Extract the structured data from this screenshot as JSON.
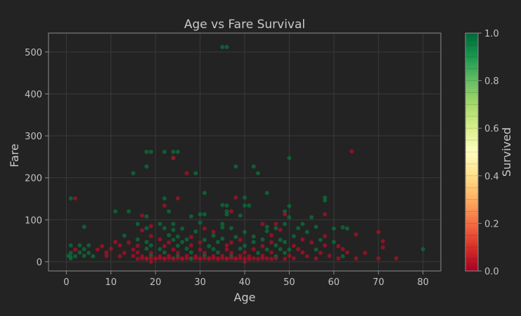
{
  "chart_data": {
    "type": "scatter",
    "title": "Age vs Fare Survival",
    "xlabel": "Age",
    "ylabel": "Fare",
    "xlim": [
      -4,
      84
    ],
    "ylim": [
      -22,
      545
    ],
    "xticks": [
      0,
      10,
      20,
      30,
      40,
      50,
      60,
      70,
      80
    ],
    "yticks": [
      0,
      100,
      200,
      300,
      400,
      500
    ],
    "grid": true,
    "colorbar": {
      "label": "Survived",
      "colormap": "RdYlGn",
      "range": [
        0.0,
        1.0
      ],
      "ticks": [
        "0.0",
        "0.2",
        "0.4",
        "0.6",
        "0.8",
        "1.0"
      ]
    },
    "colors": {
      "survived": "#0b6b3a",
      "not_survived": "#a50f26",
      "background": "#232323"
    },
    "note_points": "x = Age, y = Fare, s = Survived (0 or 1)",
    "points": [
      {
        "x": 35,
        "y": 512,
        "s": 1
      },
      {
        "x": 36,
        "y": 512,
        "s": 1
      },
      {
        "x": 18,
        "y": 262,
        "s": 1
      },
      {
        "x": 19,
        "y": 262,
        "s": 1
      },
      {
        "x": 22,
        "y": 262,
        "s": 1
      },
      {
        "x": 24,
        "y": 262,
        "s": 1
      },
      {
        "x": 25,
        "y": 262,
        "s": 1
      },
      {
        "x": 64,
        "y": 263,
        "s": 0
      },
      {
        "x": 24,
        "y": 247,
        "s": 1
      },
      {
        "x": 24,
        "y": 248,
        "s": 0
      },
      {
        "x": 50,
        "y": 247,
        "s": 1
      },
      {
        "x": 18,
        "y": 227,
        "s": 1
      },
      {
        "x": 38,
        "y": 227,
        "s": 1
      },
      {
        "x": 42,
        "y": 227,
        "s": 1
      },
      {
        "x": 15,
        "y": 211,
        "s": 1
      },
      {
        "x": 27,
        "y": 211,
        "s": 0
      },
      {
        "x": 29,
        "y": 211,
        "s": 1
      },
      {
        "x": 43,
        "y": 211,
        "s": 1
      },
      {
        "x": 31,
        "y": 164,
        "s": 1
      },
      {
        "x": 45,
        "y": 164,
        "s": 1
      },
      {
        "x": 38,
        "y": 153,
        "s": 0
      },
      {
        "x": 40,
        "y": 153,
        "s": 1
      },
      {
        "x": 58,
        "y": 153,
        "s": 1
      },
      {
        "x": 1,
        "y": 151,
        "s": 1
      },
      {
        "x": 2,
        "y": 151,
        "s": 0
      },
      {
        "x": 22,
        "y": 151,
        "s": 1
      },
      {
        "x": 25,
        "y": 151,
        "s": 0
      },
      {
        "x": 58,
        "y": 146,
        "s": 1
      },
      {
        "x": 22,
        "y": 134,
        "s": 0
      },
      {
        "x": 36,
        "y": 134,
        "s": 1
      },
      {
        "x": 40,
        "y": 134,
        "s": 1
      },
      {
        "x": 41,
        "y": 134,
        "s": 1
      },
      {
        "x": 50,
        "y": 133,
        "s": 1
      },
      {
        "x": 35,
        "y": 135,
        "s": 1
      },
      {
        "x": 11,
        "y": 120,
        "s": 1
      },
      {
        "x": 14,
        "y": 120,
        "s": 1
      },
      {
        "x": 23,
        "y": 120,
        "s": 1
      },
      {
        "x": 36,
        "y": 120,
        "s": 1
      },
      {
        "x": 37,
        "y": 120,
        "s": 0
      },
      {
        "x": 49,
        "y": 120,
        "s": 1
      },
      {
        "x": 39,
        "y": 110,
        "s": 1
      },
      {
        "x": 17,
        "y": 110,
        "s": 0
      },
      {
        "x": 18,
        "y": 108,
        "s": 1
      },
      {
        "x": 28,
        "y": 108,
        "s": 1
      },
      {
        "x": 30,
        "y": 113,
        "s": 1
      },
      {
        "x": 31,
        "y": 113,
        "s": 1
      },
      {
        "x": 36,
        "y": 113,
        "s": 1
      },
      {
        "x": 49,
        "y": 113,
        "s": 0
      },
      {
        "x": 50,
        "y": 106,
        "s": 1
      },
      {
        "x": 58,
        "y": 113,
        "s": 0
      },
      {
        "x": 55,
        "y": 106,
        "s": 1
      },
      {
        "x": 16,
        "y": 90,
        "s": 1
      },
      {
        "x": 21,
        "y": 90,
        "s": 1
      },
      {
        "x": 24,
        "y": 90,
        "s": 1
      },
      {
        "x": 30,
        "y": 93,
        "s": 1
      },
      {
        "x": 35,
        "y": 90,
        "s": 1
      },
      {
        "x": 44,
        "y": 90,
        "s": 0
      },
      {
        "x": 47,
        "y": 90,
        "s": 0
      },
      {
        "x": 49,
        "y": 90,
        "s": 1
      },
      {
        "x": 53,
        "y": 90,
        "s": 1
      },
      {
        "x": 19,
        "y": 85,
        "s": 0
      },
      {
        "x": 4,
        "y": 83,
        "s": 1
      },
      {
        "x": 18,
        "y": 80,
        "s": 1
      },
      {
        "x": 22,
        "y": 80,
        "s": 1
      },
      {
        "x": 26,
        "y": 79,
        "s": 1
      },
      {
        "x": 31,
        "y": 79,
        "s": 0
      },
      {
        "x": 35,
        "y": 82,
        "s": 1
      },
      {
        "x": 37,
        "y": 80,
        "s": 1
      },
      {
        "x": 45,
        "y": 83,
        "s": 1
      },
      {
        "x": 47,
        "y": 80,
        "s": 1
      },
      {
        "x": 52,
        "y": 80,
        "s": 1
      },
      {
        "x": 56,
        "y": 83,
        "s": 1
      },
      {
        "x": 60,
        "y": 79,
        "s": 1
      },
      {
        "x": 62,
        "y": 82,
        "s": 1
      },
      {
        "x": 63,
        "y": 79,
        "s": 1
      },
      {
        "x": 70,
        "y": 71,
        "s": 0
      },
      {
        "x": 65,
        "y": 65,
        "s": 0
      },
      {
        "x": 17,
        "y": 75,
        "s": 0
      },
      {
        "x": 24,
        "y": 76,
        "s": 1
      },
      {
        "x": 29,
        "y": 72,
        "s": 1
      },
      {
        "x": 33,
        "y": 71,
        "s": 0
      },
      {
        "x": 40,
        "y": 71,
        "s": 1
      },
      {
        "x": 45,
        "y": 73,
        "s": 1
      },
      {
        "x": 48,
        "y": 76,
        "s": 0
      },
      {
        "x": 54,
        "y": 71,
        "s": 1
      },
      {
        "x": 13,
        "y": 62,
        "s": 1
      },
      {
        "x": 19,
        "y": 61,
        "s": 0
      },
      {
        "x": 23,
        "y": 63,
        "s": 1
      },
      {
        "x": 25,
        "y": 60,
        "s": 1
      },
      {
        "x": 28,
        "y": 59,
        "s": 0
      },
      {
        "x": 33,
        "y": 62,
        "s": 1
      },
      {
        "x": 38,
        "y": 59,
        "s": 1
      },
      {
        "x": 42,
        "y": 60,
        "s": 1
      },
      {
        "x": 46,
        "y": 63,
        "s": 0
      },
      {
        "x": 51,
        "y": 61,
        "s": 1
      },
      {
        "x": 58,
        "y": 61,
        "s": 0
      },
      {
        "x": 16,
        "y": 53,
        "s": 1
      },
      {
        "x": 21,
        "y": 53,
        "s": 0
      },
      {
        "x": 24,
        "y": 52,
        "s": 1
      },
      {
        "x": 27,
        "y": 53,
        "s": 1
      },
      {
        "x": 31,
        "y": 52,
        "s": 1
      },
      {
        "x": 35,
        "y": 55,
        "s": 1
      },
      {
        "x": 39,
        "y": 52,
        "s": 0
      },
      {
        "x": 44,
        "y": 53,
        "s": 1
      },
      {
        "x": 48,
        "y": 52,
        "s": 1
      },
      {
        "x": 53,
        "y": 53,
        "s": 0
      },
      {
        "x": 57,
        "y": 52,
        "s": 1
      },
      {
        "x": 11,
        "y": 47,
        "s": 0
      },
      {
        "x": 14,
        "y": 46,
        "s": 0
      },
      {
        "x": 18,
        "y": 47,
        "s": 1
      },
      {
        "x": 23,
        "y": 46,
        "s": 0
      },
      {
        "x": 26,
        "y": 47,
        "s": 1
      },
      {
        "x": 30,
        "y": 46,
        "s": 0
      },
      {
        "x": 34,
        "y": 47,
        "s": 1
      },
      {
        "x": 37,
        "y": 46,
        "s": 0
      },
      {
        "x": 42,
        "y": 47,
        "s": 1
      },
      {
        "x": 46,
        "y": 46,
        "s": 0
      },
      {
        "x": 49,
        "y": 47,
        "s": 1
      },
      {
        "x": 55,
        "y": 46,
        "s": 0
      },
      {
        "x": 60,
        "y": 47,
        "s": 1
      },
      {
        "x": 71,
        "y": 49,
        "s": 0
      },
      {
        "x": 1,
        "y": 39,
        "s": 1
      },
      {
        "x": 3,
        "y": 39,
        "s": 1
      },
      {
        "x": 5,
        "y": 39,
        "s": 1
      },
      {
        "x": 8,
        "y": 37,
        "s": 0
      },
      {
        "x": 12,
        "y": 39,
        "s": 0
      },
      {
        "x": 16,
        "y": 38,
        "s": 0
      },
      {
        "x": 19,
        "y": 39,
        "s": 1
      },
      {
        "x": 22,
        "y": 37,
        "s": 0
      },
      {
        "x": 25,
        "y": 38,
        "s": 1
      },
      {
        "x": 28,
        "y": 39,
        "s": 0
      },
      {
        "x": 32,
        "y": 37,
        "s": 1
      },
      {
        "x": 36,
        "y": 39,
        "s": 0
      },
      {
        "x": 40,
        "y": 38,
        "s": 1
      },
      {
        "x": 44,
        "y": 37,
        "s": 0
      },
      {
        "x": 47,
        "y": 39,
        "s": 1
      },
      {
        "x": 51,
        "y": 38,
        "s": 0
      },
      {
        "x": 58,
        "y": 39,
        "s": 0
      },
      {
        "x": 61,
        "y": 37,
        "s": 0
      },
      {
        "x": 71,
        "y": 34,
        "s": 0
      },
      {
        "x": 2,
        "y": 29,
        "s": 0
      },
      {
        "x": 4,
        "y": 30,
        "s": 1
      },
      {
        "x": 7,
        "y": 29,
        "s": 0
      },
      {
        "x": 10,
        "y": 31,
        "s": 0
      },
      {
        "x": 15,
        "y": 29,
        "s": 0
      },
      {
        "x": 18,
        "y": 31,
        "s": 1
      },
      {
        "x": 21,
        "y": 30,
        "s": 1
      },
      {
        "x": 24,
        "y": 29,
        "s": 0
      },
      {
        "x": 27,
        "y": 31,
        "s": 1
      },
      {
        "x": 30,
        "y": 29,
        "s": 0
      },
      {
        "x": 33,
        "y": 30,
        "s": 1
      },
      {
        "x": 36,
        "y": 29,
        "s": 0
      },
      {
        "x": 39,
        "y": 31,
        "s": 1
      },
      {
        "x": 42,
        "y": 30,
        "s": 0
      },
      {
        "x": 45,
        "y": 29,
        "s": 1
      },
      {
        "x": 48,
        "y": 30,
        "s": 1
      },
      {
        "x": 50,
        "y": 29,
        "s": 1
      },
      {
        "x": 52,
        "y": 30,
        "s": 0
      },
      {
        "x": 56,
        "y": 29,
        "s": 1
      },
      {
        "x": 62,
        "y": 30,
        "s": 0
      },
      {
        "x": 80,
        "y": 30,
        "s": 1
      },
      {
        "x": 1,
        "y": 21,
        "s": 1
      },
      {
        "x": 3,
        "y": 22,
        "s": 1
      },
      {
        "x": 5,
        "y": 21,
        "s": 1
      },
      {
        "x": 9,
        "y": 22,
        "s": 0
      },
      {
        "x": 13,
        "y": 21,
        "s": 0
      },
      {
        "x": 16,
        "y": 22,
        "s": 0
      },
      {
        "x": 19,
        "y": 21,
        "s": 0
      },
      {
        "x": 22,
        "y": 22,
        "s": 1
      },
      {
        "x": 25,
        "y": 21,
        "s": 0
      },
      {
        "x": 28,
        "y": 22,
        "s": 1
      },
      {
        "x": 31,
        "y": 21,
        "s": 0
      },
      {
        "x": 34,
        "y": 22,
        "s": 1
      },
      {
        "x": 37,
        "y": 21,
        "s": 0
      },
      {
        "x": 40,
        "y": 22,
        "s": 0
      },
      {
        "x": 43,
        "y": 21,
        "s": 1
      },
      {
        "x": 46,
        "y": 22,
        "s": 0
      },
      {
        "x": 49,
        "y": 21,
        "s": 1
      },
      {
        "x": 53,
        "y": 22,
        "s": 0
      },
      {
        "x": 57,
        "y": 21,
        "s": 0
      },
      {
        "x": 63,
        "y": 22,
        "s": 0
      },
      {
        "x": 67,
        "y": 21,
        "s": 0
      },
      {
        "x": 0.5,
        "y": 14,
        "s": 1
      },
      {
        "x": 2,
        "y": 13,
        "s": 1
      },
      {
        "x": 4,
        "y": 14,
        "s": 1
      },
      {
        "x": 6,
        "y": 13,
        "s": 1
      },
      {
        "x": 9,
        "y": 14,
        "s": 0
      },
      {
        "x": 12,
        "y": 13,
        "s": 0
      },
      {
        "x": 15,
        "y": 14,
        "s": 0
      },
      {
        "x": 17,
        "y": 13,
        "s": 0
      },
      {
        "x": 19,
        "y": 14,
        "s": 1
      },
      {
        "x": 21,
        "y": 13,
        "s": 0
      },
      {
        "x": 23,
        "y": 14,
        "s": 0
      },
      {
        "x": 25,
        "y": 13,
        "s": 1
      },
      {
        "x": 27,
        "y": 14,
        "s": 0
      },
      {
        "x": 29,
        "y": 13,
        "s": 0
      },
      {
        "x": 31,
        "y": 14,
        "s": 1
      },
      {
        "x": 33,
        "y": 13,
        "s": 0
      },
      {
        "x": 35,
        "y": 14,
        "s": 0
      },
      {
        "x": 37,
        "y": 13,
        "s": 1
      },
      {
        "x": 39,
        "y": 14,
        "s": 0
      },
      {
        "x": 41,
        "y": 13,
        "s": 0
      },
      {
        "x": 44,
        "y": 14,
        "s": 0
      },
      {
        "x": 47,
        "y": 13,
        "s": 1
      },
      {
        "x": 50,
        "y": 14,
        "s": 0
      },
      {
        "x": 54,
        "y": 13,
        "s": 0
      },
      {
        "x": 59,
        "y": 14,
        "s": 0
      },
      {
        "x": 62,
        "y": 13,
        "s": 1
      },
      {
        "x": 1,
        "y": 8,
        "s": 1
      },
      {
        "x": 17,
        "y": 8,
        "s": 0
      },
      {
        "x": 18,
        "y": 8,
        "s": 0
      },
      {
        "x": 19,
        "y": 8,
        "s": 0
      },
      {
        "x": 20,
        "y": 8,
        "s": 0
      },
      {
        "x": 21,
        "y": 8,
        "s": 0
      },
      {
        "x": 22,
        "y": 8,
        "s": 0
      },
      {
        "x": 23,
        "y": 8,
        "s": 0
      },
      {
        "x": 24,
        "y": 8,
        "s": 1
      },
      {
        "x": 25,
        "y": 8,
        "s": 0
      },
      {
        "x": 26,
        "y": 8,
        "s": 0
      },
      {
        "x": 27,
        "y": 8,
        "s": 0
      },
      {
        "x": 28,
        "y": 8,
        "s": 0
      },
      {
        "x": 29,
        "y": 8,
        "s": 0
      },
      {
        "x": 30,
        "y": 8,
        "s": 0
      },
      {
        "x": 31,
        "y": 8,
        "s": 0
      },
      {
        "x": 32,
        "y": 8,
        "s": 0
      },
      {
        "x": 33,
        "y": 8,
        "s": 0
      },
      {
        "x": 34,
        "y": 8,
        "s": 0
      },
      {
        "x": 35,
        "y": 8,
        "s": 0
      },
      {
        "x": 36,
        "y": 8,
        "s": 0
      },
      {
        "x": 37,
        "y": 8,
        "s": 0
      },
      {
        "x": 38,
        "y": 8,
        "s": 0
      },
      {
        "x": 39,
        "y": 8,
        "s": 0
      },
      {
        "x": 40,
        "y": 8,
        "s": 0
      },
      {
        "x": 42,
        "y": 8,
        "s": 0
      },
      {
        "x": 44,
        "y": 8,
        "s": 0
      },
      {
        "x": 45,
        "y": 8,
        "s": 0
      },
      {
        "x": 47,
        "y": 8,
        "s": 0
      },
      {
        "x": 51,
        "y": 8,
        "s": 0
      },
      {
        "x": 56,
        "y": 8,
        "s": 0
      },
      {
        "x": 61,
        "y": 8,
        "s": 0
      },
      {
        "x": 65,
        "y": 8,
        "s": 0
      },
      {
        "x": 70,
        "y": 8,
        "s": 0
      },
      {
        "x": 74,
        "y": 8,
        "s": 0
      },
      {
        "x": 16,
        "y": 7,
        "s": 0
      },
      {
        "x": 18,
        "y": 7,
        "s": 0
      },
      {
        "x": 20,
        "y": 7,
        "s": 0
      },
      {
        "x": 22,
        "y": 7,
        "s": 0
      },
      {
        "x": 24,
        "y": 7,
        "s": 0
      },
      {
        "x": 26,
        "y": 7,
        "s": 0
      },
      {
        "x": 28,
        "y": 7,
        "s": 1
      },
      {
        "x": 30,
        "y": 7,
        "s": 0
      },
      {
        "x": 32,
        "y": 7,
        "s": 0
      },
      {
        "x": 34,
        "y": 7,
        "s": 0
      },
      {
        "x": 36,
        "y": 7,
        "s": 0
      },
      {
        "x": 38,
        "y": 7,
        "s": 0
      },
      {
        "x": 41,
        "y": 7,
        "s": 0
      },
      {
        "x": 43,
        "y": 7,
        "s": 0
      },
      {
        "x": 46,
        "y": 7,
        "s": 0
      },
      {
        "x": 49,
        "y": 7,
        "s": 0
      },
      {
        "x": 0.9,
        "y": 12,
        "s": 1
      },
      {
        "x": 40,
        "y": 0,
        "s": 0
      },
      {
        "x": 19,
        "y": 0,
        "s": 0
      }
    ]
  }
}
